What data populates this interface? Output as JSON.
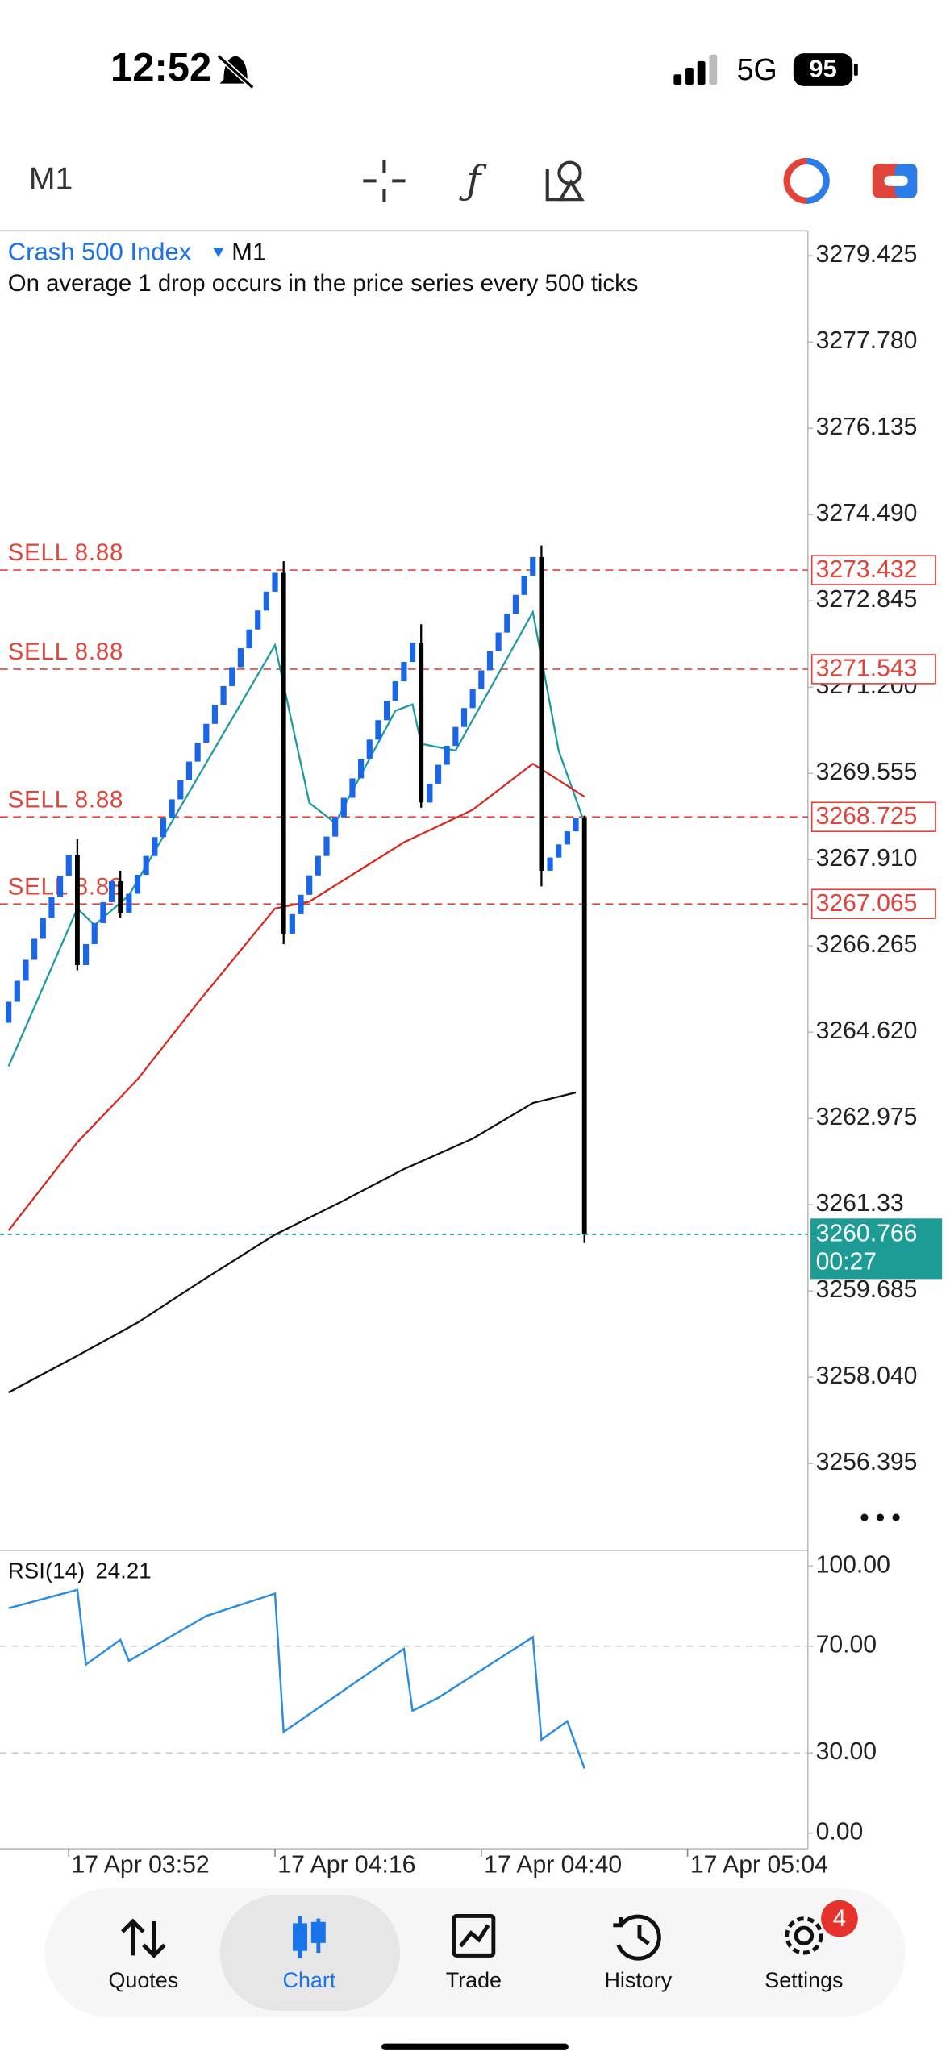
{
  "status_bar": {
    "time": "12:52",
    "network": "5G",
    "battery": 95
  },
  "toolbar": {
    "timeframe": "M1"
  },
  "chart_data": [
    {
      "type": "candlestick",
      "symbol": "Crash 500 Index",
      "timeframe": "M1",
      "description": "On average 1 drop occurs in the price series every 500 ticks",
      "up_color": "#1a66e8",
      "down_color": "#000000",
      "xlim": [
        "17 Apr 03:44",
        "17 Apr 05:18"
      ],
      "xticks": [
        "17 Apr 03:52",
        "17 Apr 04:16",
        "17 Apr 04:40",
        "17 Apr 05:04"
      ],
      "ylim": [
        3254.74,
        3279.85
      ],
      "yticks": [
        3279.425,
        {
          "value": 3277.78,
          "label": "3277.780"
        },
        3276.135,
        {
          "value": 3274.49,
          "label": "3274.490"
        },
        3272.845,
        {
          "value": 3271.2,
          "label": "3271.200"
        },
        3269.555,
        {
          "value": 3267.91,
          "label": "3267.910"
        },
        3266.265,
        {
          "value": 3264.62,
          "label": "3264.620"
        },
        3262.975,
        3261.33,
        3259.685,
        {
          "value": 3258.04,
          "label": "3258.040"
        },
        3256.395
      ],
      "x": [
        "17 Apr 03:45",
        "17 Apr 03:46",
        "17 Apr 03:47",
        "17 Apr 03:48",
        "17 Apr 03:49",
        "17 Apr 03:50",
        "17 Apr 03:51",
        "17 Apr 03:52",
        "17 Apr 03:53",
        "17 Apr 03:54",
        "17 Apr 03:55",
        "17 Apr 03:56",
        "17 Apr 03:57",
        "17 Apr 03:58",
        "17 Apr 03:59",
        "17 Apr 04:00",
        "17 Apr 04:01",
        "17 Apr 04:02",
        "17 Apr 04:03",
        "17 Apr 04:04",
        "17 Apr 04:05",
        "17 Apr 04:06",
        "17 Apr 04:07",
        "17 Apr 04:08",
        "17 Apr 04:09",
        "17 Apr 04:10",
        "17 Apr 04:11",
        "17 Apr 04:12",
        "17 Apr 04:13",
        "17 Apr 04:14",
        "17 Apr 04:15",
        "17 Apr 04:16",
        "17 Apr 04:17",
        "17 Apr 04:18",
        "17 Apr 04:19",
        "17 Apr 04:20",
        "17 Apr 04:21",
        "17 Apr 04:22",
        "17 Apr 04:23",
        "17 Apr 04:24",
        "17 Apr 04:25",
        "17 Apr 04:26",
        "17 Apr 04:27",
        "17 Apr 04:28",
        "17 Apr 04:29",
        "17 Apr 04:30",
        "17 Apr 04:31",
        "17 Apr 04:32",
        "17 Apr 04:33",
        "17 Apr 04:34",
        "17 Apr 04:35",
        "17 Apr 04:36",
        "17 Apr 04:37",
        "17 Apr 04:38",
        "17 Apr 04:39",
        "17 Apr 04:40",
        "17 Apr 04:41",
        "17 Apr 04:42",
        "17 Apr 04:43",
        "17 Apr 04:44",
        "17 Apr 04:45",
        "17 Apr 04:46",
        "17 Apr 04:47",
        "17 Apr 04:48",
        "17 Apr 04:49",
        "17 Apr 04:50",
        "17 Apr 04:51",
        "17 Apr 04:52"
      ],
      "ohlc": [
        [
          3264.8,
          3265.2,
          3264.8,
          3265.2
        ],
        [
          3265.2,
          3265.6,
          3265.2,
          3265.6
        ],
        [
          3265.6,
          3266.0,
          3265.6,
          3266.0
        ],
        [
          3266.0,
          3266.4,
          3266.0,
          3266.4
        ],
        [
          3266.4,
          3266.8,
          3266.4,
          3266.8
        ],
        [
          3266.8,
          3267.2,
          3266.8,
          3267.2
        ],
        [
          3267.2,
          3267.6,
          3267.2,
          3267.6
        ],
        [
          3267.6,
          3268.0,
          3267.6,
          3268.0
        ],
        [
          3268.0,
          3268.3,
          3265.8,
          3265.9
        ],
        [
          3265.9,
          3266.3,
          3265.9,
          3266.3
        ],
        [
          3266.3,
          3266.7,
          3266.3,
          3266.7
        ],
        [
          3266.7,
          3267.1,
          3266.7,
          3267.1
        ],
        [
          3267.1,
          3267.5,
          3267.1,
          3267.5
        ],
        [
          3267.5,
          3267.7,
          3266.8,
          3266.9
        ],
        [
          3266.9,
          3267.26,
          3266.9,
          3267.26
        ],
        [
          3267.26,
          3267.62,
          3267.26,
          3267.62
        ],
        [
          3267.62,
          3267.98,
          3267.62,
          3267.98
        ],
        [
          3267.98,
          3268.34,
          3267.98,
          3268.34
        ],
        [
          3268.34,
          3268.7,
          3268.34,
          3268.7
        ],
        [
          3268.7,
          3269.06,
          3268.7,
          3269.06
        ],
        [
          3269.06,
          3269.42,
          3269.06,
          3269.42
        ],
        [
          3269.42,
          3269.78,
          3269.42,
          3269.78
        ],
        [
          3269.78,
          3270.14,
          3269.78,
          3270.14
        ],
        [
          3270.14,
          3270.5,
          3270.14,
          3270.5
        ],
        [
          3270.5,
          3270.86,
          3270.5,
          3270.86
        ],
        [
          3270.86,
          3271.22,
          3270.86,
          3271.22
        ],
        [
          3271.22,
          3271.58,
          3271.22,
          3271.58
        ],
        [
          3271.58,
          3271.94,
          3271.58,
          3271.94
        ],
        [
          3271.94,
          3272.3,
          3271.94,
          3272.3
        ],
        [
          3272.3,
          3272.66,
          3272.3,
          3272.66
        ],
        [
          3272.66,
          3273.02,
          3272.66,
          3273.02
        ],
        [
          3273.02,
          3273.38,
          3273.02,
          3273.38
        ],
        [
          3273.38,
          3273.6,
          3266.3,
          3266.5
        ],
        [
          3266.5,
          3266.87,
          3266.5,
          3266.87
        ],
        [
          3266.87,
          3267.24,
          3266.87,
          3267.24
        ],
        [
          3267.24,
          3267.61,
          3267.24,
          3267.61
        ],
        [
          3267.61,
          3267.98,
          3267.61,
          3267.98
        ],
        [
          3267.98,
          3268.35,
          3267.98,
          3268.35
        ],
        [
          3268.35,
          3268.72,
          3268.35,
          3268.72
        ],
        [
          3268.72,
          3269.09,
          3268.72,
          3269.09
        ],
        [
          3269.09,
          3269.46,
          3269.09,
          3269.46
        ],
        [
          3269.46,
          3269.83,
          3269.46,
          3269.83
        ],
        [
          3269.83,
          3270.2,
          3269.83,
          3270.2
        ],
        [
          3270.2,
          3270.57,
          3270.2,
          3270.57
        ],
        [
          3270.57,
          3270.94,
          3270.57,
          3270.94
        ],
        [
          3270.94,
          3271.31,
          3270.94,
          3271.31
        ],
        [
          3271.31,
          3271.68,
          3271.31,
          3271.68
        ],
        [
          3271.68,
          3272.05,
          3271.68,
          3272.05
        ],
        [
          3272.05,
          3272.4,
          3268.9,
          3269.0
        ],
        [
          3269.0,
          3269.36,
          3269.0,
          3269.36
        ],
        [
          3269.36,
          3269.72,
          3269.36,
          3269.72
        ],
        [
          3269.72,
          3270.08,
          3269.72,
          3270.08
        ],
        [
          3270.08,
          3270.44,
          3270.08,
          3270.44
        ],
        [
          3270.44,
          3270.8,
          3270.44,
          3270.8
        ],
        [
          3270.8,
          3271.16,
          3270.8,
          3271.16
        ],
        [
          3271.16,
          3271.52,
          3271.16,
          3271.52
        ],
        [
          3271.52,
          3271.88,
          3271.52,
          3271.88
        ],
        [
          3271.88,
          3272.24,
          3271.88,
          3272.24
        ],
        [
          3272.24,
          3272.6,
          3272.24,
          3272.6
        ],
        [
          3272.6,
          3272.96,
          3272.6,
          3272.96
        ],
        [
          3272.96,
          3273.32,
          3272.96,
          3273.32
        ],
        [
          3273.32,
          3273.68,
          3273.32,
          3273.68
        ],
        [
          3273.68,
          3273.9,
          3267.4,
          3267.7
        ],
        [
          3267.7,
          3267.95,
          3267.7,
          3267.95
        ],
        [
          3267.95,
          3268.2,
          3267.95,
          3268.2
        ],
        [
          3268.2,
          3268.45,
          3268.2,
          3268.45
        ],
        [
          3268.45,
          3268.7,
          3268.45,
          3268.7
        ],
        [
          3268.7,
          3268.75,
          3260.6,
          3260.766
        ]
      ],
      "lines": [
        {
          "color": "#1f9aa3",
          "x": [
            "17 Apr 03:45",
            "17 Apr 03:53",
            "17 Apr 03:55",
            "17 Apr 03:59",
            "17 Apr 04:16",
            "17 Apr 04:20",
            "17 Apr 04:23",
            "17 Apr 04:30",
            "17 Apr 04:32",
            "17 Apr 04:33",
            "17 Apr 04:37",
            "17 Apr 04:46",
            "17 Apr 04:49",
            "17 Apr 04:52"
          ],
          "values": [
            3263.97,
            3266.98,
            3266.66,
            3267.23,
            3272.0,
            3268.99,
            3268.61,
            3270.75,
            3270.87,
            3270.12,
            3269.99,
            3272.63,
            3269.99,
            3268.61
          ]
        },
        {
          "color": "#d62a20",
          "x": [
            "17 Apr 03:45",
            "17 Apr 03:53",
            "17 Apr 04:00",
            "17 Apr 04:07",
            "17 Apr 04:16",
            "17 Apr 04:20",
            "17 Apr 04:31",
            "17 Apr 04:39",
            "17 Apr 04:46",
            "17 Apr 04:52"
          ],
          "values": [
            3260.84,
            3262.52,
            3263.72,
            3265.18,
            3266.98,
            3267.11,
            3268.24,
            3268.86,
            3269.74,
            3269.11
          ]
        },
        {
          "color": "#111111",
          "x": [
            "17 Apr 03:45",
            "17 Apr 03:53",
            "17 Apr 04:00",
            "17 Apr 04:07",
            "17 Apr 04:16",
            "17 Apr 04:24",
            "17 Apr 04:31",
            "17 Apr 04:39",
            "17 Apr 04:46",
            "17 Apr 04:51"
          ],
          "values": [
            3257.75,
            3258.45,
            3259.08,
            3259.83,
            3260.76,
            3261.41,
            3262.01,
            3262.59,
            3263.27,
            3263.47
          ]
        }
      ],
      "orders": [
        {
          "label": "SELL 8.88",
          "price": 3273.432
        },
        {
          "label": "SELL 8.88",
          "price": 3271.543
        },
        {
          "label": "SELL 8.88",
          "price": 3268.725
        },
        {
          "label": "SELL 8.88",
          "price": 3267.065
        }
      ],
      "order_color": "#e0443a",
      "current": {
        "price": 3260.766,
        "countdown": "00:27",
        "color": "#1d9c95"
      }
    },
    {
      "type": "line",
      "label": "RSI(14)",
      "value": 24.21,
      "color": "#2b8ce0",
      "ylim": [
        -5.9,
        104.9
      ],
      "yticks": [
        {
          "value": 100,
          "label": "100.00"
        },
        {
          "value": 70,
          "label": "70.00"
        },
        {
          "value": 30,
          "label": "30.00"
        },
        {
          "value": 0,
          "label": "0.00"
        }
      ],
      "levels": [
        70,
        30
      ],
      "x": [
        "17 Apr 03:45",
        "17 Apr 03:53",
        "17 Apr 03:54",
        "17 Apr 03:58",
        "17 Apr 03:59",
        "17 Apr 04:08",
        "17 Apr 04:16",
        "17 Apr 04:17",
        "17 Apr 04:31",
        "17 Apr 04:32",
        "17 Apr 04:35",
        "17 Apr 04:46",
        "17 Apr 04:47",
        "17 Apr 04:50",
        "17 Apr 04:52"
      ],
      "values": [
        84.2,
        91.1,
        63.1,
        72.4,
        64.5,
        81.3,
        89.7,
        37.9,
        69.0,
        45.8,
        50.7,
        73.4,
        35.0,
        41.9,
        24.21
      ]
    }
  ],
  "nav": {
    "items": [
      "Quotes",
      "Chart",
      "Trade",
      "History",
      "Settings"
    ],
    "badge": 4
  }
}
